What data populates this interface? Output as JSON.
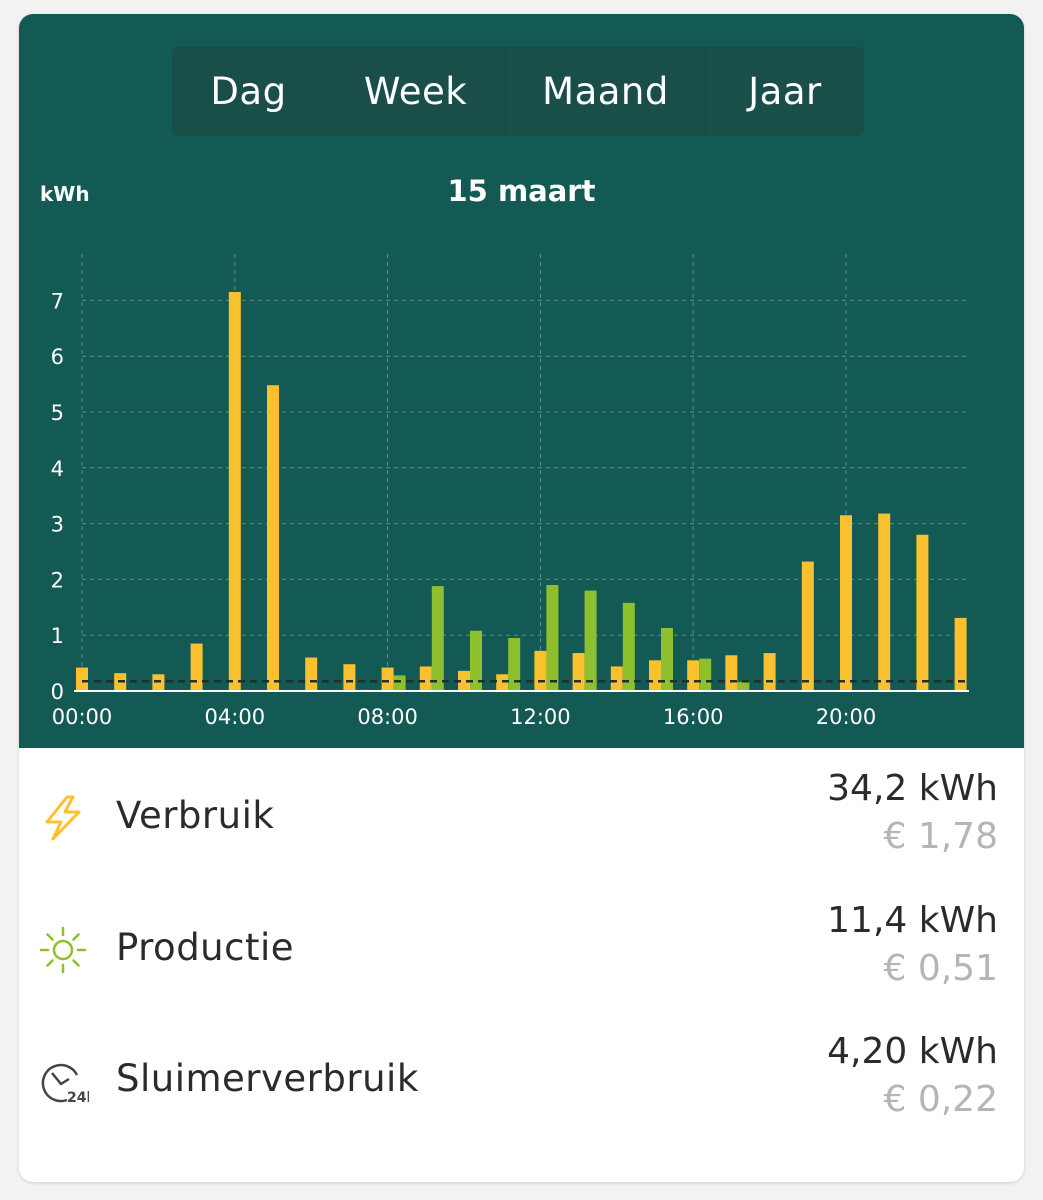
{
  "tabs": [
    {
      "label": "Dag",
      "active": true
    },
    {
      "label": "Week",
      "active": false
    },
    {
      "label": "Maand",
      "active": false
    },
    {
      "label": "Jaar",
      "active": false
    }
  ],
  "colors": {
    "panel": "#135a54",
    "consumption": "#fbc02d",
    "production": "#8dbf2e",
    "grid": "#5b8f89",
    "baseline": "#1f2e2b"
  },
  "chart_data": {
    "type": "bar",
    "title": "15 maart",
    "ylabel": "kWh",
    "xlabel": "",
    "ylim": [
      0,
      7.8
    ],
    "yticks": [
      0,
      1,
      2,
      3,
      4,
      5,
      6,
      7
    ],
    "x_tick_labels": [
      "00:00",
      "04:00",
      "08:00",
      "12:00",
      "16:00",
      "20:00"
    ],
    "x_tick_hours": [
      0,
      4,
      8,
      12,
      16,
      20
    ],
    "hours": [
      0,
      1,
      2,
      3,
      4,
      5,
      6,
      7,
      8,
      9,
      10,
      11,
      12,
      13,
      14,
      15,
      16,
      17,
      18,
      19,
      20,
      21,
      22,
      23
    ],
    "series": [
      {
        "key": "verbruik",
        "values": [
          0.42,
          0.32,
          0.3,
          0.85,
          7.15,
          5.48,
          0.6,
          0.48,
          0.42,
          0.44,
          0.36,
          0.3,
          0.72,
          0.68,
          0.44,
          0.55,
          0.55,
          0.64,
          0.68,
          2.32,
          3.15,
          3.18,
          2.8,
          1.31
        ]
      },
      {
        "key": "productie",
        "values": [
          0,
          0,
          0,
          0,
          0,
          0,
          0,
          0.02,
          0.28,
          1.88,
          1.08,
          0.95,
          1.9,
          1.8,
          1.58,
          1.13,
          0.58,
          0.16,
          0,
          0,
          0,
          0,
          0,
          0
        ]
      }
    ],
    "baseline": 0.175
  },
  "stats": [
    {
      "key": "verbruik",
      "icon": "lightning-icon",
      "label": "Verbruik",
      "kwh": "34,2 kWh",
      "eur": "€ 1,78"
    },
    {
      "key": "productie",
      "icon": "sun-icon",
      "label": "Productie",
      "kwh": "11,4 kWh",
      "eur": "€ 0,51"
    },
    {
      "key": "sluimer",
      "icon": "clock-24h-icon",
      "label": "Sluimerverbruik",
      "kwh": "4,20 kWh",
      "eur": "€ 0,22"
    }
  ]
}
